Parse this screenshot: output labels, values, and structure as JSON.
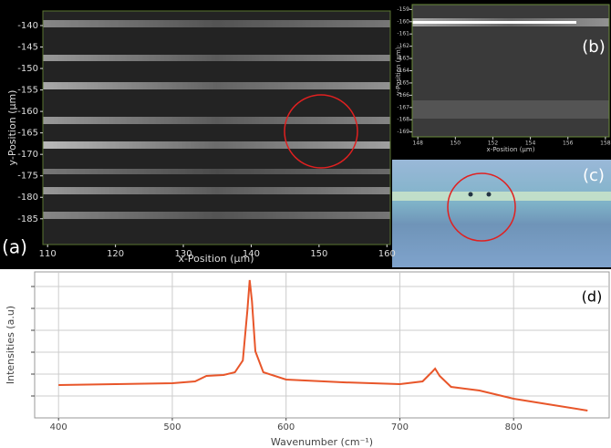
{
  "chart_data": [
    {
      "type": "image",
      "panel_label": "(a)",
      "xlabel": "x-Position (µm)",
      "ylabel": "y-Position (µm)",
      "xlim": [
        109.3,
        160.5
      ],
      "ylim": [
        -191,
        -136.6
      ],
      "xticks": [
        110,
        120,
        130,
        140,
        150,
        160
      ],
      "yticks": [
        -140,
        -145,
        -150,
        -155,
        -160,
        -165,
        -170,
        -175,
        -180,
        -185
      ]
    },
    {
      "type": "image",
      "panel_label": "(b)",
      "xlabel": "x-Position (µm)",
      "ylabel": "y-Position (µm)",
      "xlim": [
        147.7,
        158.2
      ],
      "ylim": [
        -169.4,
        -158.6
      ],
      "xticks": [
        148,
        150,
        152,
        154,
        156,
        158
      ],
      "yticks": [
        -159,
        -160,
        -161,
        -162,
        -163,
        -164,
        -165,
        -166,
        -167,
        -168,
        -169
      ]
    },
    {
      "type": "image",
      "panel_label": "(c)"
    },
    {
      "type": "line",
      "panel_label": "(d)",
      "xlabel": "Wavenumber (cm⁻¹)",
      "ylabel": "Intensities (a.u)",
      "xlim": [
        379,
        884
      ],
      "ylim": [
        0,
        160
      ],
      "xticks": [
        400,
        500,
        600,
        700,
        800
      ],
      "grid": true,
      "x": [
        400,
        450,
        500,
        520,
        530,
        545,
        555,
        562,
        566,
        568,
        570,
        573,
        580,
        600,
        650,
        700,
        720,
        728,
        731,
        735,
        745,
        770,
        800,
        830,
        865
      ],
      "series": [
        {
          "color": "#e8562a",
          "values": [
            36,
            37,
            38,
            40,
            46,
            47,
            50,
            63,
            118,
            151,
            128,
            73,
            50,
            42,
            39,
            37,
            40,
            50,
            54,
            46,
            34,
            30,
            21,
            15,
            8
          ]
        }
      ]
    }
  ]
}
